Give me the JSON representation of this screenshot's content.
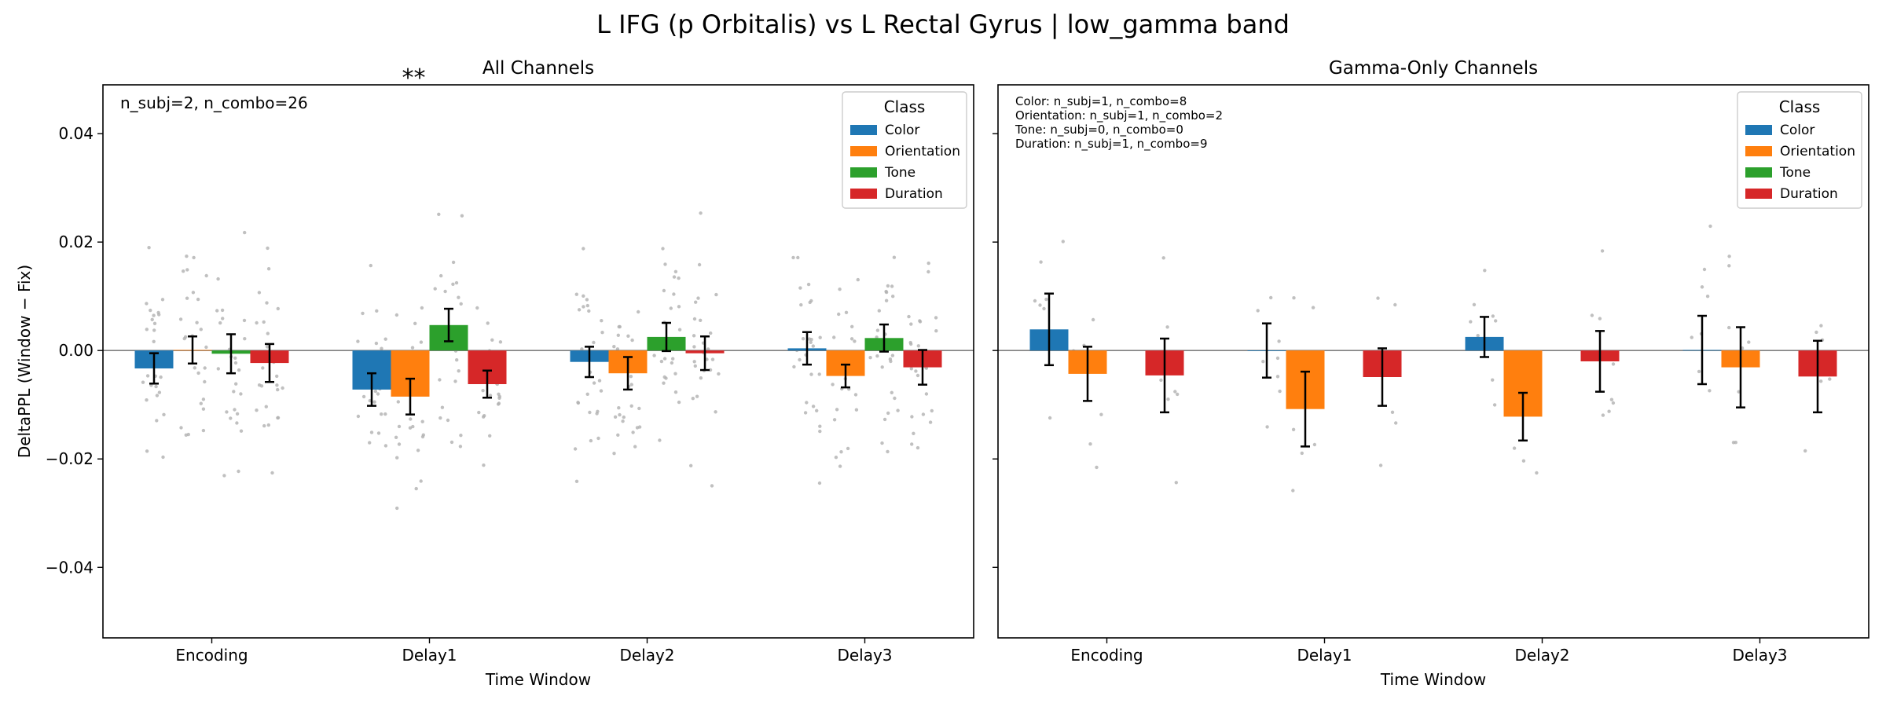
{
  "figure": {
    "suptitle": "L IFG (p Orbitalis) vs L Rectal Gyrus  |  low_gamma band"
  },
  "colors": {
    "Color": "#1f77b4",
    "Orientation": "#ff7f0e",
    "Tone": "#2ca02c",
    "Duration": "#d62728",
    "zero_line": "#808080",
    "scatter": "#b0b0b0",
    "significance": "#ff0000"
  },
  "chart_data": [
    {
      "type": "bar",
      "title": "All Channels",
      "xlabel": "Time Window",
      "ylabel": "DeltaPPL (Window − Fix)",
      "ylim": [
        -0.053,
        0.049
      ],
      "yticks": [
        -0.04,
        -0.02,
        0.0,
        0.02,
        0.04
      ],
      "ytick_labels": [
        "−0.04",
        "−0.02",
        "0.00",
        "0.02",
        "0.04"
      ],
      "categories": [
        "Encoding",
        "Delay1",
        "Delay2",
        "Delay3"
      ],
      "legend": {
        "title": "Class",
        "placement": "top-right"
      },
      "annotation": "n_subj=2, n_combo=26",
      "significance": [
        {
          "category": "Delay1",
          "label": "**"
        }
      ],
      "series": [
        {
          "name": "Color",
          "values": [
            -0.0033,
            -0.0072,
            -0.0021,
            0.0004
          ],
          "errors": [
            0.0028,
            0.003,
            0.0028,
            0.003
          ]
        },
        {
          "name": "Orientation",
          "values": [
            0.0001,
            -0.0085,
            -0.0042,
            -0.0047
          ],
          "errors": [
            0.0025,
            0.0033,
            0.003,
            0.0021
          ]
        },
        {
          "name": "Tone",
          "values": [
            -0.0006,
            0.0047,
            0.0025,
            0.0023
          ],
          "errors": [
            0.0036,
            0.003,
            0.0026,
            0.0025
          ]
        },
        {
          "name": "Duration",
          "values": [
            -0.0023,
            -0.0062,
            -0.0005,
            -0.0031
          ],
          "errors": [
            0.0035,
            0.0025,
            0.0031,
            0.0032
          ]
        }
      ]
    },
    {
      "type": "bar",
      "title": "Gamma-Only Channels",
      "xlabel": "Time Window",
      "ylabel": "",
      "ylim": [
        -0.053,
        0.049
      ],
      "yticks": [
        -0.04,
        -0.02,
        0.0,
        0.02,
        0.04
      ],
      "ytick_labels": [
        "",
        "",
        "",
        "",
        ""
      ],
      "categories": [
        "Encoding",
        "Delay1",
        "Delay2",
        "Delay3"
      ],
      "legend": {
        "title": "Class",
        "placement": "top-right"
      },
      "annotation_lines": [
        "Color: n_subj=1, n_combo=8",
        "Orientation: n_subj=1, n_combo=2",
        "Tone: n_subj=0, n_combo=0",
        "Duration: n_subj=1, n_combo=9"
      ],
      "significance": [],
      "series": [
        {
          "name": "Color",
          "values": [
            0.0039,
            0.0,
            0.0025,
            0.0001
          ],
          "errors": [
            0.0066,
            0.005,
            0.0037,
            0.0063
          ]
        },
        {
          "name": "Orientation",
          "values": [
            -0.0043,
            -0.0108,
            -0.0122,
            -0.0031
          ],
          "errors": [
            0.005,
            0.0069,
            0.0044,
            0.0074
          ]
        },
        {
          "name": "Tone",
          "values": [
            null,
            null,
            null,
            null
          ],
          "errors": [
            null,
            null,
            null,
            null
          ]
        },
        {
          "name": "Duration",
          "values": [
            -0.0046,
            -0.0049,
            -0.002,
            -0.0048
          ],
          "errors": [
            0.0068,
            0.0053,
            0.0056,
            0.0066
          ]
        }
      ]
    }
  ]
}
